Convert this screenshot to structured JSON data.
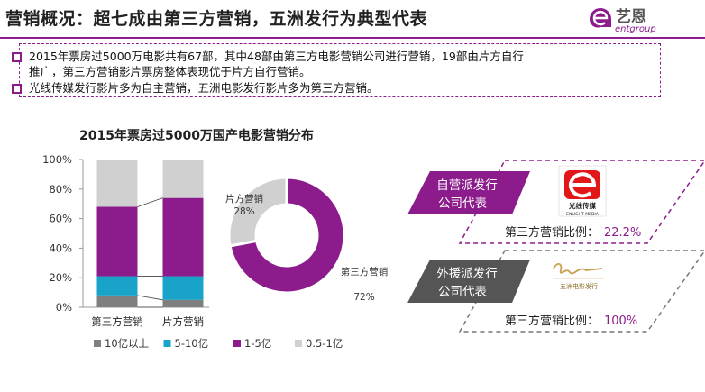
{
  "header": {
    "title": "营销概况：超七成由第三方营销，五洲发行为典型代表",
    "logo_main": "艺恩",
    "logo_sub": "entgroup"
  },
  "info": {
    "bullets": [
      "2015年票房过5000万电影共有67部，其中48部由第三方电影营销公司进行营销，19部由片方自行",
      "推广，第三方营销影片票房整体表现优于片方自行营销。",
      "光线传媒发行影片多为自主营销，五洲电影发行影片多为第三方营销。"
    ]
  },
  "colors": {
    "accent": "#8c1c8c",
    "gray_dark": "#7f7f7f",
    "blue": "#1aa3c8",
    "purple": "#8c1c8c",
    "gray_light": "#d0d0d0",
    "badge_gray": "#555555"
  },
  "chart_data": [
    {
      "type": "bar",
      "stacked": true,
      "title": "2015年票房过5000万国产电影营销分布",
      "categories": [
        "第三方营销",
        "片方营销"
      ],
      "series": [
        {
          "name": "10亿以上",
          "color": "#7f7f7f",
          "values": [
            8,
            5
          ]
        },
        {
          "name": "5-10亿",
          "color": "#1aa3c8",
          "values": [
            13,
            16
          ]
        },
        {
          "name": "1-5亿",
          "color": "#8c1c8c",
          "values": [
            47,
            53
          ]
        },
        {
          "name": "0.5-1亿",
          "color": "#d0d0d0",
          "values": [
            32,
            26
          ]
        }
      ],
      "yticks": [
        "0%",
        "20%",
        "40%",
        "60%",
        "80%",
        "100%"
      ],
      "ylim": [
        0,
        100
      ],
      "legend": "bottom"
    },
    {
      "type": "pie",
      "donut": true,
      "slices": [
        {
          "label": "第三方营销",
          "value": 72,
          "display": "72%",
          "color": "#8c1c8c"
        },
        {
          "label": "片方营销",
          "value": 28,
          "display": "28%",
          "color": "#d0d0d0"
        }
      ]
    }
  ],
  "right_panel": {
    "top": {
      "badge_lines": [
        "自营派发行",
        "公司代表"
      ],
      "company_logo_text": "光线传媒",
      "company_logo_sub": "ENLIGHT MEDIA",
      "ratio_label": "第三方营销比例：",
      "ratio_value": "22.2%"
    },
    "bottom": {
      "badge_lines": [
        "外援派发行",
        "公司代表"
      ],
      "company_logo_text": "五洲电影发行",
      "ratio_label": "第三方营销比例：",
      "ratio_value": "100%"
    }
  }
}
